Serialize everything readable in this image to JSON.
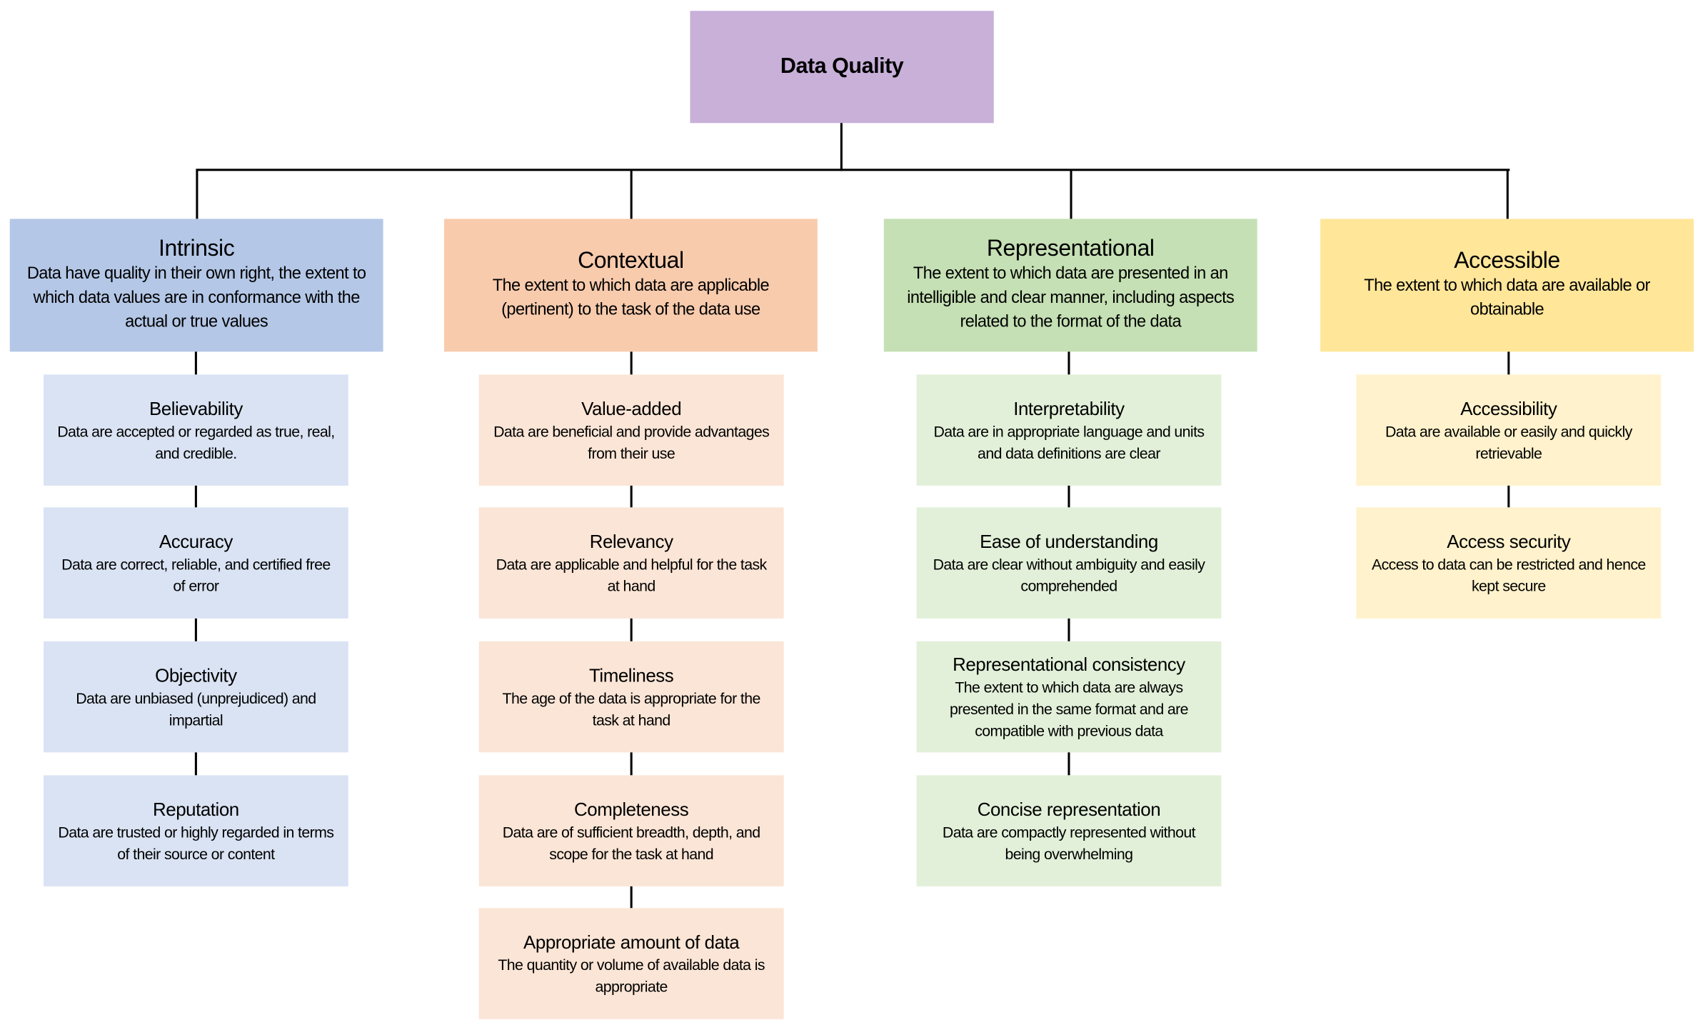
{
  "root": {
    "title": "Data Quality",
    "color": "#c8b0d9"
  },
  "categories": [
    {
      "title": "Intrinsic",
      "description": "Data have quality in their own right, the extent to which data values are in conformance with the actual or true values",
      "color": "#b4c7e7",
      "child_color": "#dae3f3",
      "children": [
        {
          "title": "Believability",
          "description": "Data are accepted or regarded as true, real, and credible."
        },
        {
          "title": "Accuracy",
          "description": "Data are correct, reliable, and certified free of error"
        },
        {
          "title": "Objectivity",
          "description": "Data are unbiased (unprejudiced) and impartial"
        },
        {
          "title": "Reputation",
          "description": "Data are trusted or highly regarded in terms of their source or content"
        }
      ]
    },
    {
      "title": "Contextual",
      "description": "The extent to which data are applicable (pertinent) to the task of the data use",
      "color": "#f8cbad",
      "child_color": "#fbe5d6",
      "children": [
        {
          "title": "Value-added",
          "description": "Data are beneficial and provide advantages from their use"
        },
        {
          "title": "Relevancy",
          "description": "Data are applicable and helpful for the task at hand"
        },
        {
          "title": "Timeliness",
          "description": "The age of the data is appropriate for the task at hand"
        },
        {
          "title": "Completeness",
          "description": "Data are of sufficient breadth, depth, and scope for the task at hand"
        },
        {
          "title": "Appropriate amount of data",
          "description": "The quantity or volume of available data is appropriate"
        }
      ]
    },
    {
      "title": "Representational",
      "description": "The extent to which data are presented in an intelligible and clear manner, including aspects related to the format of the data",
      "color": "#c5e0b4",
      "child_color": "#e2f0d9",
      "children": [
        {
          "title": "Interpretability",
          "description": "Data are in appropriate language and units and data definitions are clear"
        },
        {
          "title": "Ease of understanding",
          "description": "Data are clear without ambiguity and easily comprehended"
        },
        {
          "title": "Representational consistency",
          "description": "The extent to which data are always presented in the same format and are compatible with previous data"
        },
        {
          "title": "Concise representation",
          "description": "Data are compactly represented without being overwhelming"
        }
      ]
    },
    {
      "title": "Accessible",
      "description": "The extent to which data are available or obtainable",
      "color": "#ffe699",
      "child_color": "#fff2cc",
      "children": [
        {
          "title": "Accessibility",
          "description": "Data are available or easily and quickly retrievable"
        },
        {
          "title": "Access security",
          "description": "Access to data can be restricted and hence kept secure"
        }
      ]
    }
  ]
}
